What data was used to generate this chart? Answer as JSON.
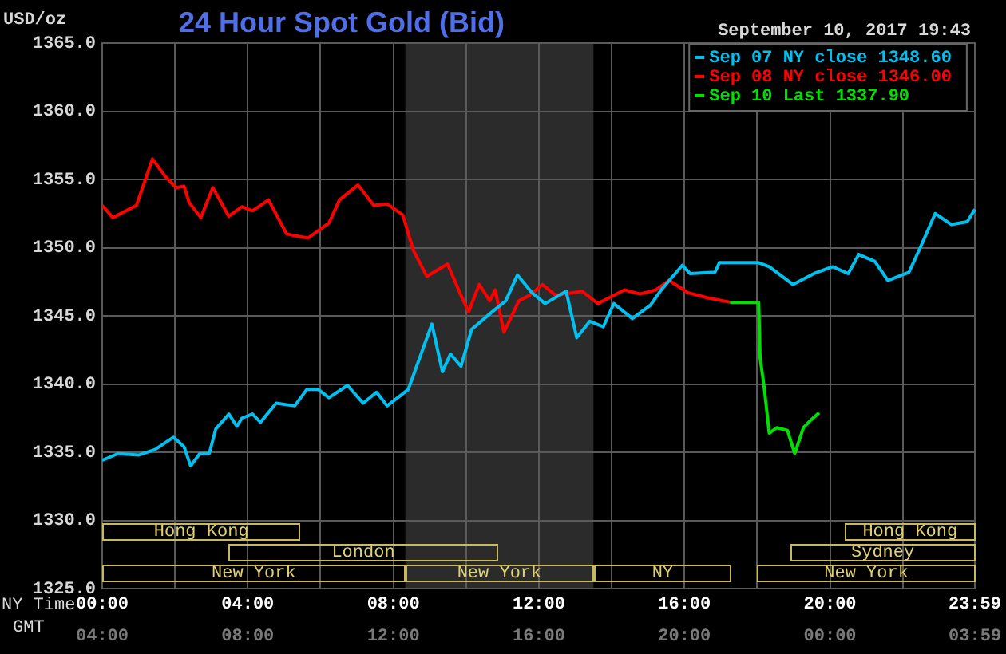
{
  "chart_data": {
    "type": "line",
    "title": "24 Hour Spot Gold (Bid)",
    "subtitle": "September 10, 2017 19:43",
    "ylabel": "USD/oz",
    "xlabel": "NY Time",
    "x2label": "GMT",
    "xlim": [
      0,
      24
    ],
    "xticks": [
      {
        "value": 0,
        "label": "00:00"
      },
      {
        "value": 2,
        "label": null
      },
      {
        "value": 4,
        "label": "04:00"
      },
      {
        "value": 6,
        "label": null
      },
      {
        "value": 8,
        "label": "08:00"
      },
      {
        "value": 10,
        "label": null
      },
      {
        "value": 12,
        "label": "12:00"
      },
      {
        "value": 14,
        "label": null
      },
      {
        "value": 16,
        "label": "16:00"
      },
      {
        "value": 18,
        "label": null
      },
      {
        "value": 20,
        "label": "20:00"
      },
      {
        "value": 22,
        "label": null
      },
      {
        "value": 23.98,
        "label": "23:59"
      }
    ],
    "x2lim": [
      "2017-09-10T04:00",
      "2017-09-11T04:00"
    ],
    "x2ticks": [
      {
        "value": "2017-09-10T04:00",
        "label": "04:00"
      },
      {
        "value": "2017-09-10T08:00",
        "label": "08:00"
      },
      {
        "value": "2017-09-10T12:00",
        "label": "12:00"
      },
      {
        "value": "2017-09-10T16:00",
        "label": "16:00"
      },
      {
        "value": "2017-09-10T20:00",
        "label": "20:00"
      },
      {
        "value": "2017-09-11T00:00",
        "label": "00:00"
      },
      {
        "value": "2017-09-11T03:59",
        "label": "03:59"
      }
    ],
    "ylim": [
      1325,
      1365
    ],
    "yticks": [
      {
        "value": 1325,
        "label": "1325.0"
      },
      {
        "value": 1330,
        "label": "1330.0"
      },
      {
        "value": 1335,
        "label": "1335.0"
      },
      {
        "value": 1340,
        "label": "1340.0"
      },
      {
        "value": 1345,
        "label": "1345.0"
      },
      {
        "value": 1350,
        "label": "1350.0"
      },
      {
        "value": 1355,
        "label": "1355.0"
      },
      {
        "value": 1360,
        "label": "1360.0"
      },
      {
        "value": 1365,
        "label": "1365.0"
      }
    ],
    "grid": true,
    "legend": "top right",
    "marker": "none",
    "line_style": "solid",
    "bands": [
      {
        "axis": "x",
        "from": 8.33,
        "to": 13.5,
        "color": "#2b2b2b"
      }
    ],
    "annotations": [
      "Hong Kong",
      "London",
      "New York",
      "New York",
      "NY",
      "Hong Kong",
      "Sydney",
      "New York"
    ],
    "series": [
      {
        "name": "Sep 07 NY close 1348.60",
        "color": "#00c0f0",
        "x": [
          0,
          0.43,
          1.01,
          1.45,
          1.96,
          2.25,
          2.43,
          2.68,
          2.94,
          3.12,
          3.48,
          3.7,
          3.84,
          4.13,
          4.35,
          4.78,
          5.29,
          5.62,
          5.94,
          6.23,
          6.74,
          7.17,
          7.54,
          7.83,
          8.41,
          9.06,
          9.35,
          9.57,
          9.86,
          10.15,
          10.72,
          11.09,
          11.41,
          11.81,
          12.17,
          12.75,
          13.04,
          13.4,
          13.77,
          14.06,
          14.57,
          15.07,
          15.36,
          15.94,
          16.16,
          16.84,
          16.96,
          18.04,
          18.33,
          18.98,
          19.56,
          20.07,
          20.5,
          20.79,
          21.23,
          21.59,
          22.17,
          22.53,
          22.89,
          23.33,
          23.77,
          23.98
        ],
        "values": [
          1334.4,
          1334.9,
          1334.8,
          1335.2,
          1336.1,
          1335.4,
          1334.0,
          1334.9,
          1334.9,
          1336.7,
          1337.8,
          1336.9,
          1337.5,
          1337.8,
          1337.2,
          1338.6,
          1338.4,
          1339.6,
          1339.6,
          1339.0,
          1339.9,
          1338.6,
          1339.4,
          1338.4,
          1339.6,
          1344.4,
          1340.9,
          1342.2,
          1341.3,
          1344.0,
          1345.3,
          1346.1,
          1348.0,
          1346.7,
          1345.9,
          1346.8,
          1343.4,
          1344.6,
          1344.2,
          1345.9,
          1344.8,
          1345.8,
          1346.9,
          1348.7,
          1348.1,
          1348.2,
          1348.9,
          1348.9,
          1348.6,
          1347.3,
          1348.1,
          1348.6,
          1348.1,
          1349.5,
          1349.0,
          1347.6,
          1348.2,
          1350.3,
          1352.5,
          1351.7,
          1351.9,
          1352.8
        ]
      },
      {
        "name": "Sep 08 NY close 1346.00",
        "color": "#ff0000",
        "x": [
          0,
          0.29,
          0.94,
          1.38,
          1.74,
          2.03,
          2.25,
          2.39,
          2.71,
          3.04,
          3.48,
          3.84,
          4.13,
          4.57,
          5.07,
          5.65,
          6.23,
          6.52,
          7.03,
          7.46,
          7.83,
          8.26,
          8.55,
          8.92,
          9.49,
          9.86,
          10.07,
          10.36,
          10.65,
          10.8,
          11.04,
          11.45,
          11.74,
          12.1,
          12.46,
          13.19,
          13.62,
          14.35,
          14.78,
          15.21,
          15.58,
          16.09,
          16.67,
          17.25
        ],
        "values": [
          1353.1,
          1352.2,
          1353.1,
          1356.5,
          1355.2,
          1354.4,
          1354.5,
          1353.3,
          1352.2,
          1354.4,
          1352.3,
          1353.0,
          1352.7,
          1353.5,
          1351.0,
          1350.7,
          1351.8,
          1353.5,
          1354.6,
          1353.1,
          1353.2,
          1352.4,
          1349.8,
          1347.9,
          1348.8,
          1346.5,
          1345.3,
          1347.3,
          1346.1,
          1346.9,
          1343.8,
          1346.1,
          1346.5,
          1347.3,
          1346.5,
          1346.8,
          1345.9,
          1346.9,
          1346.6,
          1346.9,
          1347.6,
          1346.7,
          1346.3,
          1346.0
        ]
      },
      {
        "name": "Sep 10 Last 1337.90",
        "color": "#00e000",
        "x": [
          17.25,
          18.04,
          18.08,
          18.19,
          18.33,
          18.54,
          18.83,
          19.03,
          19.27,
          19.49,
          19.7
        ],
        "values": [
          1346.0,
          1346.0,
          1341.9,
          1339.8,
          1336.4,
          1336.8,
          1336.6,
          1334.9,
          1336.8,
          1337.4,
          1337.9
        ]
      }
    ]
  }
}
